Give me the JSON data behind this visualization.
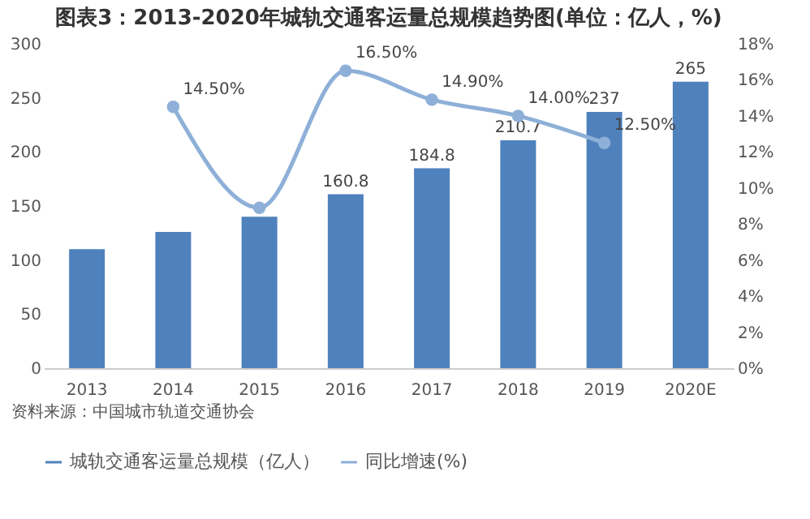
{
  "chart_data": {
    "type": "bar",
    "title": "图表3：2013-2020年城轨交通客运量总规模趋势图(单位：亿人，%)",
    "categories": [
      "2013",
      "2014",
      "2015",
      "2016",
      "2017",
      "2018",
      "2019",
      "2020E"
    ],
    "series": [
      {
        "name": "城轨交通客运量总规模（亿人）",
        "color": "#4f81bd",
        "values": [
          110,
          126,
          140,
          160.8,
          184.8,
          210.7,
          237,
          265
        ],
        "value_labels": [
          null,
          null,
          null,
          "160.8",
          "184.8",
          "210.7",
          "237",
          "265"
        ]
      },
      {
        "name": "同比增速(%)",
        "type": "line",
        "axis": "y2",
        "color": "#8eb0d8",
        "values": [
          null,
          14.5,
          8.9,
          16.5,
          14.9,
          14.0,
          12.5,
          null
        ],
        "value_labels": [
          null,
          "14.50%",
          null,
          "16.50%",
          "14.90%",
          "14.00%",
          "12.50%",
          null
        ]
      }
    ],
    "ylim": [
      0,
      300
    ],
    "yticks": [
      0,
      50,
      100,
      150,
      200,
      250,
      300
    ],
    "y2lim": [
      0,
      18
    ],
    "y2ticks": [
      {
        "value": 0,
        "label": "0%"
      },
      {
        "value": 2,
        "label": "2%"
      },
      {
        "value": 4,
        "label": "4%"
      },
      {
        "value": 6,
        "label": "6%"
      },
      {
        "value": 8,
        "label": "8%"
      },
      {
        "value": 10,
        "label": "10%"
      },
      {
        "value": 12,
        "label": "12%"
      },
      {
        "value": 14,
        "label": "14%"
      },
      {
        "value": 16,
        "label": "16%"
      },
      {
        "value": 18,
        "label": "18%"
      }
    ],
    "marker": "circle",
    "line_style": "solid",
    "grid": false,
    "legend": "bottom",
    "annotations": [
      "资料来源：中国城市轨道交通协会"
    ]
  }
}
